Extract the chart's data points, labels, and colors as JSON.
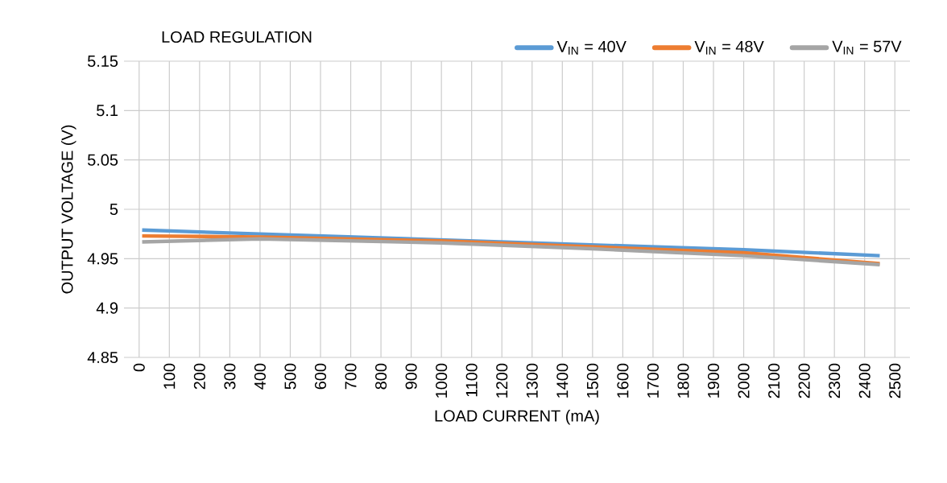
{
  "chart_data": {
    "type": "line",
    "title": "LOAD REGULATION",
    "xlabel": "LOAD CURRENT (mA)",
    "ylabel": "OUTPUT VOLTAGE (V)",
    "x": [
      10,
      400,
      1000,
      1500,
      2000,
      2450
    ],
    "series": [
      {
        "name": "V$_{IN}$ = 40V",
        "color": "#5b9bd5",
        "values": [
          4.979,
          4.975,
          4.969,
          4.964,
          4.959,
          4.953
        ]
      },
      {
        "name": "V$_{IN}$ = 48V",
        "color": "#ed7d31",
        "values": [
          4.973,
          4.972,
          4.968,
          4.962,
          4.956,
          4.945
        ]
      },
      {
        "name": "V$_{IN}$ = 57V",
        "color": "#a5a5a5",
        "values": [
          4.967,
          4.97,
          4.966,
          4.96,
          4.953,
          4.944
        ]
      }
    ],
    "xlim": [
      -50,
      2550
    ],
    "xticks": [
      0,
      100,
      200,
      300,
      400,
      500,
      600,
      700,
      800,
      900,
      1000,
      1100,
      1200,
      1300,
      1400,
      1500,
      1600,
      1700,
      1800,
      1900,
      2000,
      2100,
      2200,
      2300,
      2400,
      2500
    ],
    "ylim": [
      4.85,
      5.15
    ],
    "yticks": [
      {
        "value": 4.85,
        "label": "4.85"
      },
      {
        "value": 4.9,
        "label": "4.9"
      },
      {
        "value": 4.95,
        "label": "4.95"
      },
      {
        "value": 5.0,
        "label": "5"
      },
      {
        "value": 5.05,
        "label": "5.05"
      },
      {
        "value": 5.1,
        "label": "5.1"
      },
      {
        "value": 5.15,
        "label": "5.15"
      }
    ],
    "grid": true,
    "legend": "top right",
    "marker": "none",
    "line_style": "solid"
  }
}
